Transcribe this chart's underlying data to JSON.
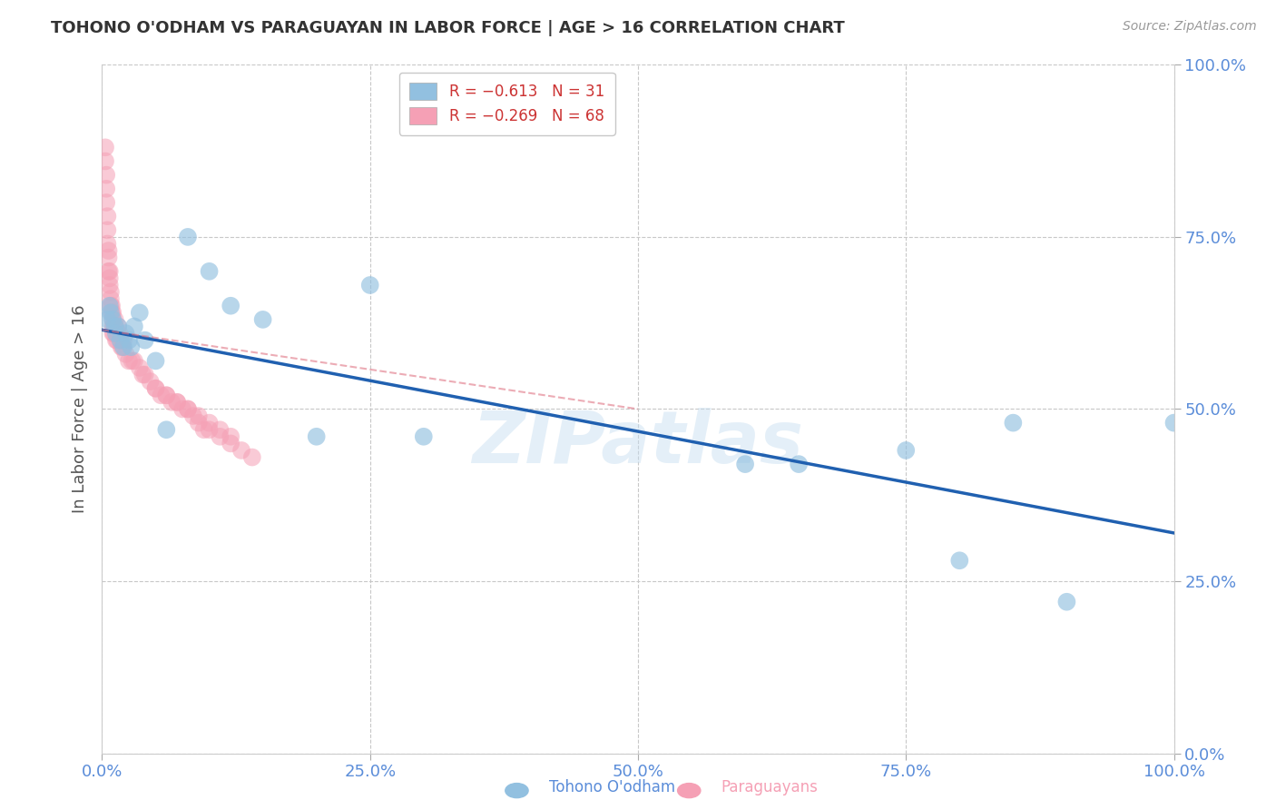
{
  "title": "TOHONO O'ODHAM VS PARAGUAYAN IN LABOR FORCE | AGE > 16 CORRELATION CHART",
  "source": "Source: ZipAtlas.com",
  "ylabel": "In Labor Force | Age > 16",
  "xlim": [
    0.0,
    1.0
  ],
  "ylim": [
    0.0,
    1.0
  ],
  "xticks": [
    0.0,
    0.25,
    0.5,
    0.75,
    1.0
  ],
  "yticks": [
    0.0,
    0.25,
    0.5,
    0.75,
    1.0
  ],
  "xtick_labels": [
    "0.0%",
    "25.0%",
    "50.0%",
    "75.0%",
    "100.0%"
  ],
  "ytick_labels": [
    "0.0%",
    "25.0%",
    "50.0%",
    "75.0%",
    "100.0%"
  ],
  "watermark": "ZIPatlas",
  "legend_label_1": "R = −0.613   N = 31",
  "legend_label_2": "R = −0.269   N = 68",
  "tohono_scatter_x": [
    0.005,
    0.007,
    0.008,
    0.01,
    0.012,
    0.013,
    0.015,
    0.017,
    0.02,
    0.022,
    0.025,
    0.027,
    0.03,
    0.035,
    0.04,
    0.05,
    0.06,
    0.08,
    0.1,
    0.12,
    0.15,
    0.2,
    0.25,
    0.3,
    0.6,
    0.65,
    0.75,
    0.8,
    0.85,
    0.9,
    1.0
  ],
  "tohono_scatter_y": [
    0.63,
    0.65,
    0.64,
    0.63,
    0.62,
    0.61,
    0.62,
    0.6,
    0.59,
    0.61,
    0.6,
    0.59,
    0.62,
    0.64,
    0.6,
    0.57,
    0.47,
    0.75,
    0.7,
    0.65,
    0.63,
    0.46,
    0.68,
    0.46,
    0.42,
    0.42,
    0.44,
    0.28,
    0.48,
    0.22,
    0.48
  ],
  "paraguayan_scatter_x": [
    0.003,
    0.003,
    0.004,
    0.004,
    0.004,
    0.005,
    0.005,
    0.005,
    0.006,
    0.006,
    0.006,
    0.007,
    0.007,
    0.007,
    0.008,
    0.008,
    0.008,
    0.009,
    0.009,
    0.01,
    0.01,
    0.01,
    0.01,
    0.011,
    0.011,
    0.012,
    0.012,
    0.013,
    0.013,
    0.014,
    0.015,
    0.015,
    0.016,
    0.017,
    0.018,
    0.019,
    0.02,
    0.022,
    0.025,
    0.028,
    0.03,
    0.035,
    0.038,
    0.04,
    0.045,
    0.05,
    0.055,
    0.06,
    0.065,
    0.07,
    0.075,
    0.08,
    0.085,
    0.09,
    0.095,
    0.1,
    0.11,
    0.12,
    0.13,
    0.14,
    0.05,
    0.06,
    0.07,
    0.08,
    0.09,
    0.1,
    0.11,
    0.12
  ],
  "paraguayan_scatter_y": [
    0.88,
    0.86,
    0.84,
    0.82,
    0.8,
    0.78,
    0.76,
    0.74,
    0.73,
    0.72,
    0.7,
    0.7,
    0.69,
    0.68,
    0.67,
    0.66,
    0.65,
    0.65,
    0.64,
    0.64,
    0.63,
    0.62,
    0.61,
    0.62,
    0.61,
    0.63,
    0.62,
    0.61,
    0.6,
    0.6,
    0.62,
    0.61,
    0.61,
    0.6,
    0.59,
    0.59,
    0.6,
    0.58,
    0.57,
    0.57,
    0.57,
    0.56,
    0.55,
    0.55,
    0.54,
    0.53,
    0.52,
    0.52,
    0.51,
    0.51,
    0.5,
    0.5,
    0.49,
    0.48,
    0.47,
    0.47,
    0.46,
    0.45,
    0.44,
    0.43,
    0.53,
    0.52,
    0.51,
    0.5,
    0.49,
    0.48,
    0.47,
    0.46
  ],
  "tohono_line_x": [
    0.0,
    1.0
  ],
  "tohono_line_y": [
    0.615,
    0.32
  ],
  "paraguayan_line_x": [
    0.0,
    0.5
  ],
  "paraguayan_line_y": [
    0.615,
    0.5
  ],
  "tohono_color": "#92c0e0",
  "paraguayan_color": "#f5a0b5",
  "tohono_line_color": "#2060b0",
  "paraguayan_line_color": "#e07585",
  "background_color": "#ffffff",
  "grid_color": "#c8c8c8",
  "tick_color": "#5b8dd9",
  "title_color": "#333333",
  "source_color": "#999999",
  "ylabel_color": "#555555"
}
